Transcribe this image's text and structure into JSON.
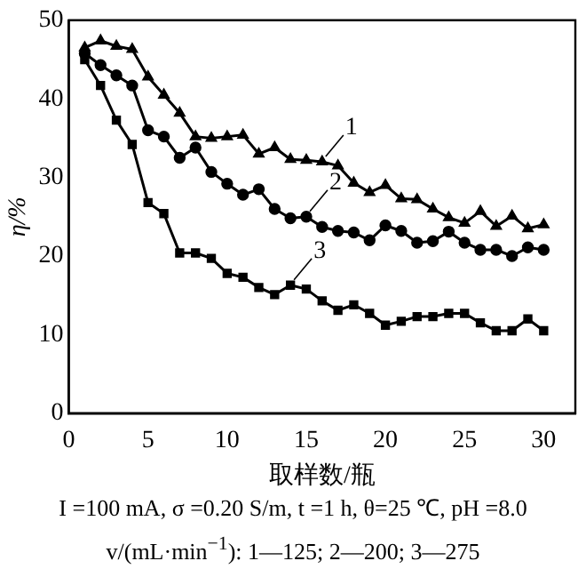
{
  "chart_data": {
    "type": "line",
    "xlabel": "取样数/瓶",
    "ylabel": "η/%",
    "x": [
      1,
      2,
      3,
      4,
      5,
      6,
      7,
      8,
      9,
      10,
      11,
      12,
      13,
      14,
      15,
      16,
      17,
      18,
      19,
      20,
      21,
      22,
      23,
      24,
      25,
      26,
      27,
      28,
      29,
      30
    ],
    "series": [
      {
        "color": "#000000",
        "marker": "triangle",
        "values": [
          46.5,
          47.4,
          46.7,
          46.3,
          42.8,
          40.5,
          38.2,
          35.2,
          35,
          35.2,
          35.4,
          33,
          33.8,
          32.3,
          32.2,
          32,
          31.5,
          29.3,
          28.1,
          29,
          27.3,
          27.2,
          26,
          24.9,
          24.2,
          25.7,
          23.8,
          25.1,
          23.5,
          24
        ]
      },
      {
        "color": "#000000",
        "marker": "circle",
        "values": [
          45.8,
          44.3,
          43,
          41.7,
          36,
          35.2,
          32.5,
          33.8,
          30.7,
          29.2,
          27.8,
          28.5,
          26,
          24.8,
          25,
          23.7,
          23.2,
          23,
          22,
          23.9,
          23.2,
          21.7,
          21.9,
          23.1,
          21.7,
          20.8,
          20.8,
          20,
          21.1,
          20.8
        ]
      },
      {
        "color": "#000000",
        "marker": "square",
        "values": [
          45,
          41.7,
          37.3,
          34.2,
          26.8,
          25.4,
          20.4,
          20.4,
          19.7,
          17.8,
          17.3,
          16,
          15.1,
          16.3,
          15.8,
          14.3,
          13.1,
          13.8,
          12.7,
          11.2,
          11.7,
          12.3,
          12.3,
          12.7,
          12.7,
          11.5,
          10.5,
          10.5,
          12,
          10.5
        ]
      }
    ],
    "xlim": [
      0,
      32
    ],
    "xticks": [
      0,
      5,
      10,
      15,
      20,
      25,
      30
    ],
    "ylim": [
      0,
      50
    ],
    "yticks": [
      0,
      10,
      20,
      30,
      40,
      50
    ],
    "grid": false,
    "legend": false,
    "line_style": "solid",
    "annotations": [
      {
        "text": "1",
        "x": 16,
        "y": 32
      },
      {
        "text": "2",
        "x": 15,
        "y": 25
      },
      {
        "text": "3",
        "x": 14,
        "y": 16.3
      },
      "I =100 mA, σ =0.20 S/m, t =1 h, θ=25 ℃, pH =8.0",
      "v/(mL·min$^{−1}$): 1—125; 2—200; 3—275"
    ]
  }
}
